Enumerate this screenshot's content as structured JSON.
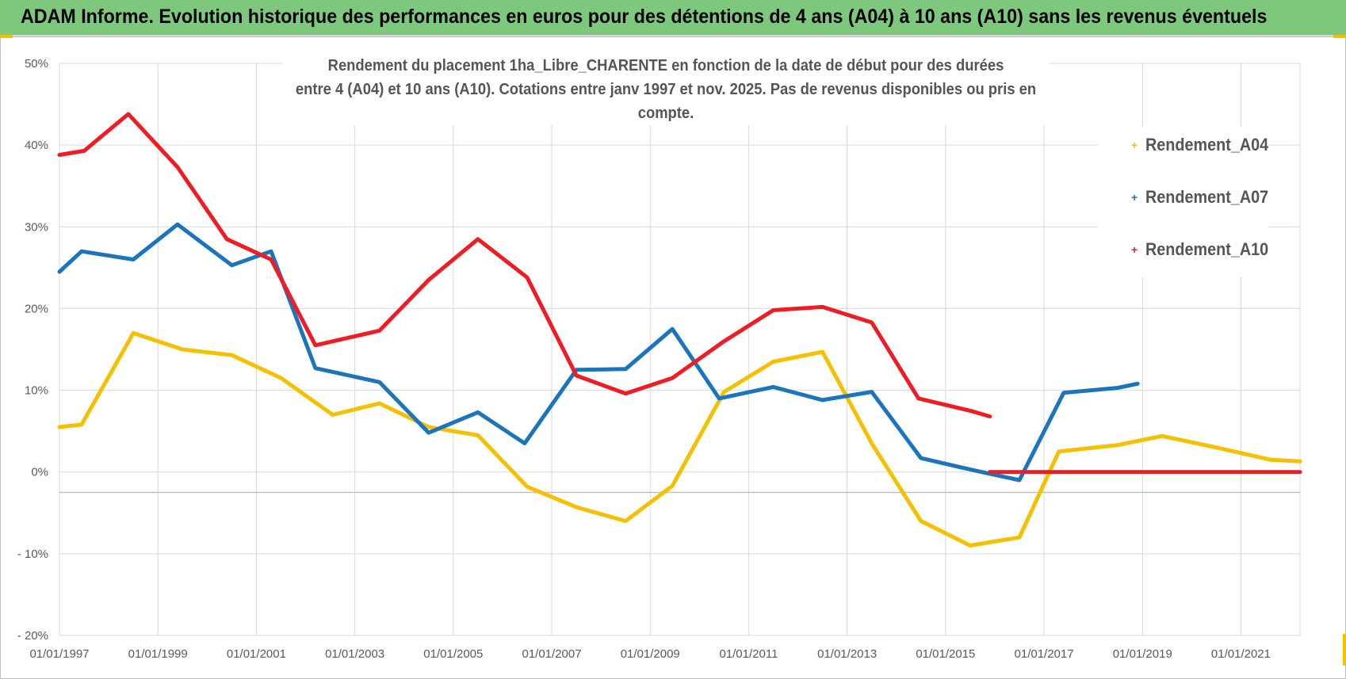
{
  "banner": {
    "title": "ADAM Informe. Evolution historique des performances en euros pour des détentions de 4 ans (A04) à 10 ans (A10) sans les revenus éventuels"
  },
  "colors": {
    "banner_bg": "#7dc87c",
    "a04": "#f5c000",
    "a07": "#1b75bc",
    "a10": "#ee1c25",
    "grid": "#d9d9d9"
  },
  "chart_data": {
    "type": "line",
    "title_lines": [
      "Rendement du placement 1ha_Libre_CHARENTE en fonction de la date de début pour des durées",
      "entre 4 (A04) et 10 ans (A10). Cotations entre janv 1997 et nov. 2025. Pas de revenus disponibles ou pris en compte."
    ],
    "xlabel": "",
    "ylabel": "",
    "x_range": [
      1997,
      2022.2
    ],
    "ylim": [
      -20,
      50
    ],
    "y_ticks": [
      -20,
      -10,
      0,
      10,
      20,
      30,
      40,
      50
    ],
    "y_tick_labels": [
      "- 20%",
      "- 10%",
      "0%",
      "10%",
      "20%",
      "30%",
      "40%",
      "50%"
    ],
    "x_ticks": [
      1997,
      1999,
      2001,
      2003,
      2005,
      2007,
      2009,
      2011,
      2013,
      2015,
      2017,
      2019,
      2021
    ],
    "x_tick_labels": [
      "01/01/1997",
      "01/01/1999",
      "01/01/2001",
      "01/01/2003",
      "01/01/2005",
      "01/01/2007",
      "01/01/2009",
      "01/01/2011",
      "01/01/2013",
      "01/01/2015",
      "01/01/2017",
      "01/01/2019",
      "01/01/2021"
    ],
    "zero_line": -2.5,
    "series": [
      {
        "name": "Rendement_A04",
        "key": "a04",
        "points": [
          [
            1997.0,
            5.5
          ],
          [
            1997.45,
            5.8
          ],
          [
            1998.5,
            17.0
          ],
          [
            1999.5,
            15.0
          ],
          [
            2000.5,
            14.3
          ],
          [
            2001.5,
            11.5
          ],
          [
            2002.55,
            7.0
          ],
          [
            2003.5,
            8.4
          ],
          [
            2004.5,
            5.5
          ],
          [
            2005.5,
            4.5
          ],
          [
            2006.5,
            -1.8
          ],
          [
            2007.5,
            -4.3
          ],
          [
            2008.5,
            -6.0
          ],
          [
            2009.45,
            -1.7
          ],
          [
            2010.5,
            9.8
          ],
          [
            2011.5,
            13.5
          ],
          [
            2012.5,
            14.7
          ],
          [
            2013.5,
            3.5
          ],
          [
            2014.5,
            -6.0
          ],
          [
            2015.5,
            -9.0
          ],
          [
            2016.5,
            -8.0
          ],
          [
            2017.3,
            2.5
          ],
          [
            2018.5,
            3.3
          ],
          [
            2019.4,
            4.4
          ],
          [
            2020.5,
            3.0
          ],
          [
            2021.6,
            1.5
          ],
          [
            2022.2,
            1.3
          ]
        ]
      },
      {
        "name": "Rendement_A07",
        "key": "a07",
        "points": [
          [
            1997.0,
            24.5
          ],
          [
            1997.45,
            27.0
          ],
          [
            1998.5,
            26.0
          ],
          [
            1999.4,
            30.3
          ],
          [
            2000.5,
            25.3
          ],
          [
            2001.3,
            27.0
          ],
          [
            2002.2,
            12.7
          ],
          [
            2003.5,
            11.0
          ],
          [
            2004.5,
            4.8
          ],
          [
            2005.5,
            7.3
          ],
          [
            2006.45,
            3.5
          ],
          [
            2007.5,
            12.5
          ],
          [
            2008.5,
            12.6
          ],
          [
            2009.45,
            17.5
          ],
          [
            2010.4,
            9.0
          ],
          [
            2011.5,
            10.4
          ],
          [
            2012.5,
            8.8
          ],
          [
            2013.5,
            9.8
          ],
          [
            2014.5,
            1.7
          ],
          [
            2015.5,
            0.3
          ],
          [
            2016.5,
            -1.0
          ],
          [
            2017.4,
            9.7
          ],
          [
            2018.5,
            10.3
          ],
          [
            2018.9,
            10.8
          ]
        ]
      },
      {
        "name": "Rendement_A10",
        "key": "a10",
        "points": [
          [
            1997.0,
            38.8
          ],
          [
            1997.5,
            39.3
          ],
          [
            1998.4,
            43.8
          ],
          [
            1999.4,
            37.3
          ],
          [
            2000.4,
            28.5
          ],
          [
            2001.3,
            26.0
          ],
          [
            2002.2,
            15.5
          ],
          [
            2003.5,
            17.3
          ],
          [
            2004.5,
            23.5
          ],
          [
            2005.5,
            28.5
          ],
          [
            2006.5,
            23.8
          ],
          [
            2007.5,
            11.8
          ],
          [
            2008.5,
            9.6
          ],
          [
            2009.45,
            11.5
          ],
          [
            2010.5,
            16.0
          ],
          [
            2011.5,
            19.8
          ],
          [
            2012.5,
            20.2
          ],
          [
            2013.5,
            18.3
          ],
          [
            2014.45,
            9.0
          ],
          [
            2015.5,
            7.5
          ],
          [
            2015.9,
            6.8
          ]
        ]
      },
      {
        "name": "Rendement_A10_zero",
        "key": "a10",
        "points": [
          [
            2015.9,
            0.0
          ],
          [
            2022.2,
            0.0
          ]
        ]
      }
    ],
    "legend": [
      {
        "label": "Rendement_A04",
        "key": "a04"
      },
      {
        "label": "Rendement_A07",
        "key": "a07"
      },
      {
        "label": "Rendement_A10",
        "key": "a10"
      }
    ],
    "legend_position": "right"
  }
}
